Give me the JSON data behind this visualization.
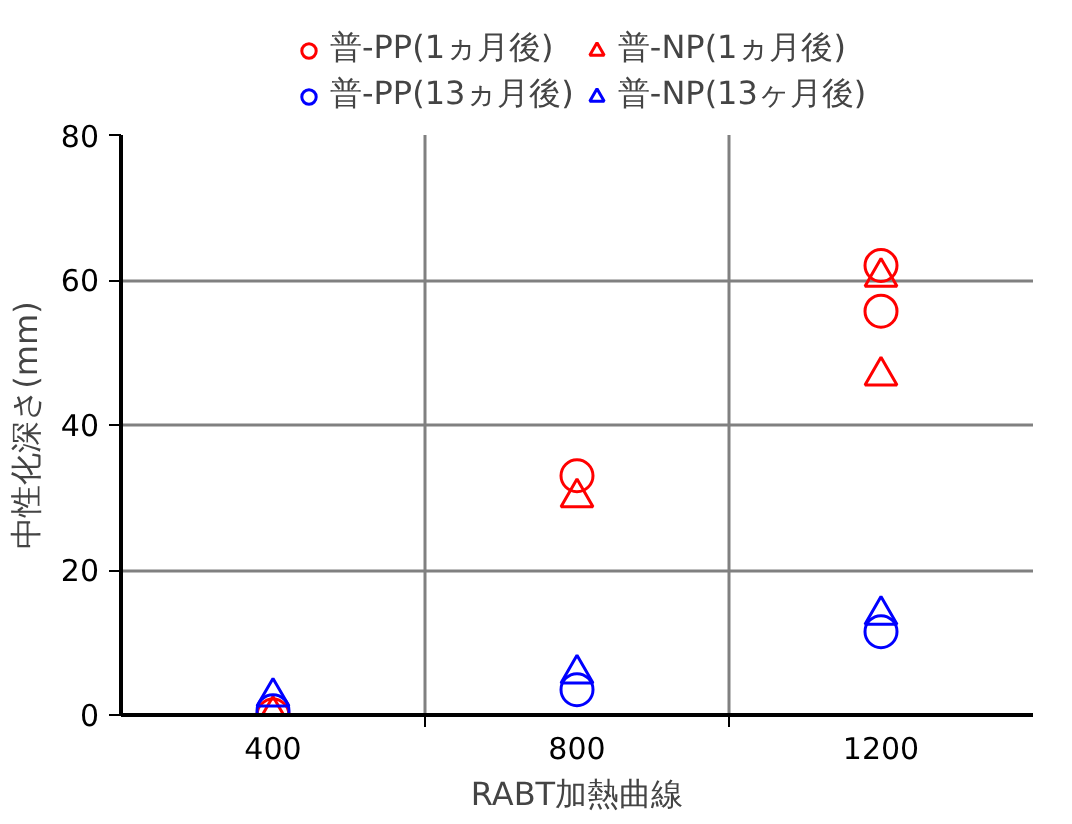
{
  "chart_data": {
    "type": "scatter",
    "xlabel": "RABT加熱曲線",
    "ylabel": "中性化深さ(mm)",
    "series": [
      {
        "name": "普-PP(1ヵ月後)",
        "color": "#ff0000",
        "marker": "circle",
        "x": [
          400,
          800,
          1200,
          1200
        ],
        "values": [
          0,
          33,
          62,
          55.7
        ]
      },
      {
        "name": "普-NP(1ヵ月後)",
        "color": "#ff0000",
        "marker": "triangle",
        "x": [
          400,
          800,
          1200,
          1200
        ],
        "values": [
          0,
          30,
          60.4,
          46.8
        ]
      },
      {
        "name": "普-PP(13ヵ月後)",
        "color": "#0000ff",
        "marker": "circle",
        "x": [
          400,
          800,
          1200
        ],
        "values": [
          0.6,
          3.5,
          11.5
        ]
      },
      {
        "name": "普-NP(13ヶ月後)",
        "color": "#0000ff",
        "marker": "triangle",
        "x": [
          400,
          800,
          1200
        ],
        "values": [
          2.5,
          5.7,
          13.8
        ]
      }
    ],
    "xlim": [
      200,
      1400
    ],
    "xticks": [
      400,
      {
        "value": 600,
        "label": null
      },
      800,
      {
        "value": 1000,
        "label": null
      },
      1200
    ],
    "ylim": [
      0,
      80
    ],
    "yticks": [
      0,
      20,
      40,
      60,
      80
    ],
    "grid": true,
    "legend": "top"
  }
}
